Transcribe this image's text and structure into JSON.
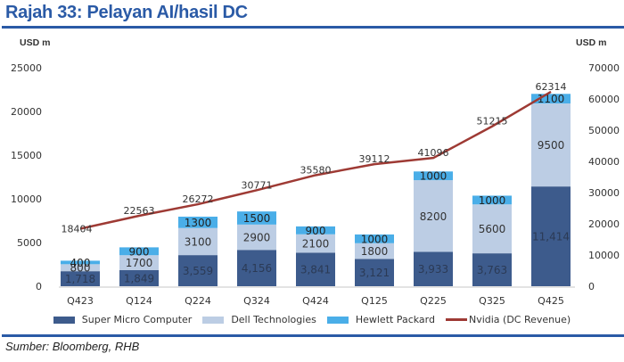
{
  "header": {
    "title": "Rajah 33: Pelayan AI/hasil DC"
  },
  "footer": {
    "source": "Sumber: Bloomberg, RHB"
  },
  "chart_data": {
    "type": "bar",
    "subtype": "stacked-bar-with-line-secondary-axis",
    "title": "Rajah 33: Pelayan AI/hasil DC",
    "categories": [
      "Q423",
      "Q124",
      "Q224",
      "Q324",
      "Q424",
      "Q125",
      "Q225",
      "Q325",
      "Q425"
    ],
    "series": [
      {
        "name": "Super Micro Computer",
        "type": "bar",
        "axis": "left",
        "color": "#3d5b8c",
        "values": [
          1718,
          1849,
          3559,
          4156,
          3841,
          3121,
          3933,
          3763,
          11414
        ],
        "labels": [
          "1,718",
          "1,849",
          "3,559",
          "4,156",
          "3,841",
          "3,121",
          "3,933",
          "3,763",
          "11,414"
        ]
      },
      {
        "name": "Dell Technologies",
        "type": "bar",
        "axis": "left",
        "color": "#bccde4",
        "values": [
          800,
          1700,
          3100,
          2900,
          2100,
          1800,
          8200,
          5600,
          9500
        ],
        "labels": [
          "800",
          "1700",
          "3100",
          "2900",
          "2100",
          "1800",
          "8200",
          "5600",
          "9500"
        ]
      },
      {
        "name": "Hewlett Packard",
        "type": "bar",
        "axis": "left",
        "color": "#4aaee8",
        "values": [
          400,
          900,
          1300,
          1500,
          900,
          1000,
          1000,
          1000,
          1100
        ],
        "labels": [
          "400",
          "900",
          "1300",
          "1500",
          "900",
          "1000",
          "1000",
          "1000",
          "1100"
        ]
      },
      {
        "name": "Nvidia (DC Revenue)",
        "type": "line",
        "axis": "right",
        "color": "#9e3a34",
        "values": [
          18404,
          22563,
          26272,
          30771,
          35580,
          39112,
          41096,
          51215,
          62314
        ],
        "labels": [
          "18404",
          "22563",
          "26272",
          "30771",
          "35580",
          "39112",
          "41096",
          "51215",
          "62314"
        ]
      }
    ],
    "left_axis": {
      "label": "USD m",
      "min": 0,
      "max": 25000,
      "ticks": [
        "0",
        "5000",
        "10000",
        "15000",
        "20000",
        "25000"
      ]
    },
    "right_axis": {
      "label": "USD m",
      "min": 0,
      "max": 70000,
      "ticks": [
        "0",
        "10000",
        "20000",
        "30000",
        "40000",
        "50000",
        "60000",
        "70000"
      ]
    },
    "xlabel": "",
    "grid": false,
    "legend_position": "bottom"
  }
}
